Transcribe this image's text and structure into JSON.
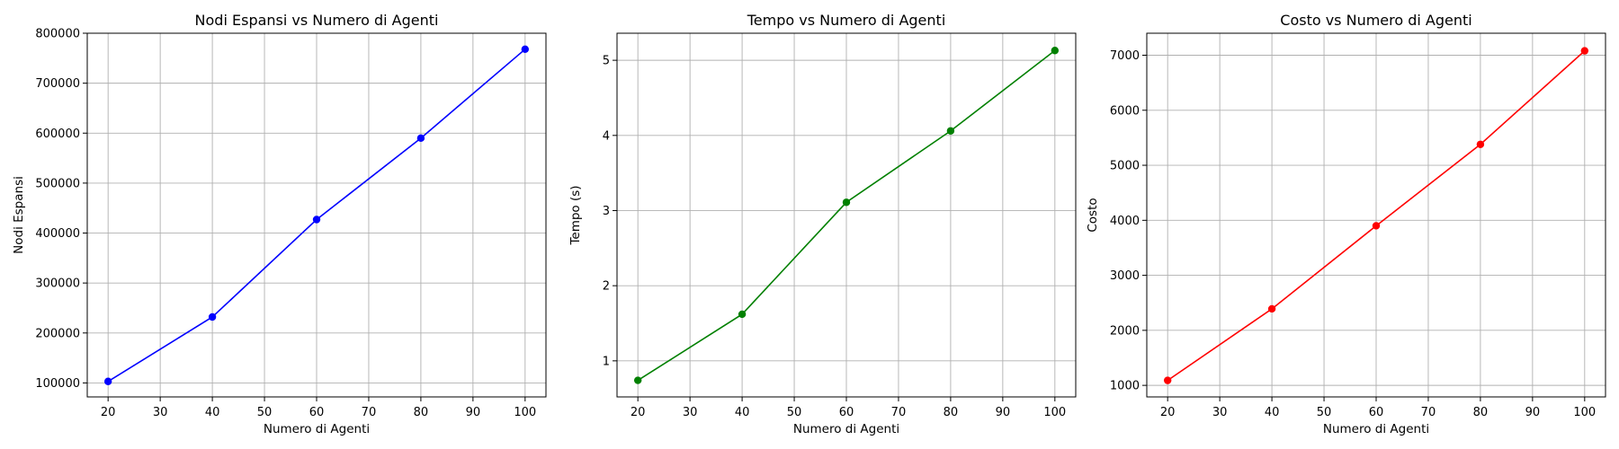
{
  "chart_data": [
    {
      "type": "line",
      "title": "Nodi Espansi vs Numero di Agenti",
      "xlabel": "Numero di Agenti",
      "ylabel": "Nodi Espansi",
      "x": [
        20,
        40,
        60,
        80,
        100
      ],
      "series": [
        {
          "values": [
            103000,
            232000,
            427000,
            590000,
            768000
          ],
          "color": "#0000ff"
        }
      ],
      "xlim": [
        16,
        104
      ],
      "ylim": [
        72000,
        800000
      ],
      "xticks": [
        20,
        30,
        40,
        50,
        60,
        70,
        80,
        90,
        100
      ],
      "yticks": [
        100000,
        200000,
        300000,
        400000,
        500000,
        600000,
        700000,
        800000
      ],
      "grid": true
    },
    {
      "type": "line",
      "title": "Tempo vs Numero di Agenti",
      "xlabel": "Numero di Agenti",
      "ylabel": "Tempo (s)",
      "x": [
        20,
        40,
        60,
        80,
        100
      ],
      "series": [
        {
          "values": [
            0.74,
            1.62,
            3.11,
            4.06,
            5.13
          ],
          "color": "#008000"
        }
      ],
      "xlim": [
        16,
        104
      ],
      "ylim": [
        0.52,
        5.36
      ],
      "xticks": [
        20,
        30,
        40,
        50,
        60,
        70,
        80,
        90,
        100
      ],
      "yticks": [
        1,
        2,
        3,
        4,
        5
      ],
      "grid": true
    },
    {
      "type": "line",
      "title": "Costo vs Numero di Agenti",
      "xlabel": "Numero di Agenti",
      "ylabel": "Costo",
      "x": [
        20,
        40,
        60,
        80,
        100
      ],
      "series": [
        {
          "values": [
            1090,
            2390,
            3900,
            5380,
            7080
          ],
          "color": "#ff0000"
        }
      ],
      "xlim": [
        16,
        104
      ],
      "ylim": [
        790,
        7400
      ],
      "xticks": [
        20,
        30,
        40,
        50,
        60,
        70,
        80,
        90,
        100
      ],
      "yticks": [
        1000,
        2000,
        3000,
        4000,
        5000,
        6000,
        7000
      ],
      "grid": true
    }
  ]
}
